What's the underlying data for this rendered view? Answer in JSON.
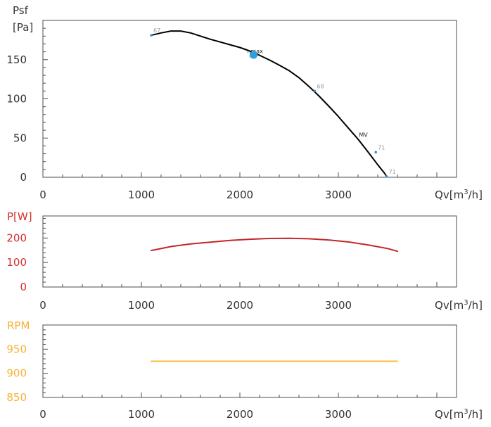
{
  "chart_data": [
    {
      "type": "line",
      "ylabel_line1": "Psf",
      "ylabel_line2": "[Pa]",
      "xlabel": "Qv[m³/h]",
      "xlim": [
        0,
        4200
      ],
      "ylim": [
        0,
        200
      ],
      "xticks": [
        0,
        1000,
        2000,
        3000
      ],
      "yticks": [
        0,
        50,
        100,
        150
      ],
      "label_color": "#333333",
      "series": [
        {
          "color": "#000000",
          "points": [
            [
              1100,
              181
            ],
            [
              1200,
              184
            ],
            [
              1300,
              186.5
            ],
            [
              1400,
              186.5
            ],
            [
              1500,
              184
            ],
            [
              1600,
              180
            ],
            [
              1700,
              176
            ],
            [
              1800,
              172.5
            ],
            [
              1900,
              169
            ],
            [
              2000,
              165.5
            ],
            [
              2100,
              161
            ],
            [
              2200,
              155.5
            ],
            [
              2300,
              149.5
            ],
            [
              2400,
              143
            ],
            [
              2500,
              136
            ],
            [
              2600,
              127
            ],
            [
              2700,
              116
            ],
            [
              2800,
              104
            ],
            [
              2900,
              91
            ],
            [
              3000,
              77.5
            ],
            [
              3100,
              63
            ],
            [
              3200,
              48.5
            ],
            [
              3300,
              32.5
            ],
            [
              3400,
              16
            ],
            [
              3470,
              5
            ],
            [
              3490,
              1
            ]
          ]
        }
      ],
      "markers": [
        {
          "x": 1100,
          "y": 181,
          "label": "67"
        },
        {
          "x": 2760,
          "y": 110,
          "label": "68"
        },
        {
          "x": 3380,
          "y": 32,
          "label": "71"
        },
        {
          "x": 3490,
          "y": 1,
          "label": "71"
        }
      ],
      "annotations": [
        {
          "x": 2140,
          "y": 162,
          "text": "ηmax",
          "subtext": "67"
        },
        {
          "x": 3240,
          "y": 55,
          "text": "MV"
        }
      ],
      "highlight_point": {
        "x": 2140,
        "y": 156,
        "color": "#2b9fe0"
      }
    },
    {
      "type": "line",
      "ylabel": "P[W]",
      "xlabel": "Qv[m³/h]",
      "xlim": [
        0,
        4200
      ],
      "ylim": [
        0,
        290
      ],
      "xticks": [
        0,
        1000,
        2000,
        3000
      ],
      "yticks": [
        0,
        100,
        200
      ],
      "label_color": "#d0312d",
      "series": [
        {
          "color": "#c0282b",
          "points": [
            [
              1100,
              149
            ],
            [
              1300,
              165
            ],
            [
              1500,
              176
            ],
            [
              1700,
              183
            ],
            [
              1900,
              190
            ],
            [
              2100,
              195
            ],
            [
              2300,
              198
            ],
            [
              2500,
              199
            ],
            [
              2700,
              197
            ],
            [
              2900,
              192
            ],
            [
              3100,
              184
            ],
            [
              3300,
              172
            ],
            [
              3500,
              157
            ],
            [
              3600,
              146
            ]
          ]
        }
      ]
    },
    {
      "type": "line",
      "ylabel": "RPM",
      "xlabel": "Qv[m³/h]",
      "xlim": [
        0,
        4200
      ],
      "ylim": [
        850,
        1000
      ],
      "xticks": [
        0,
        1000,
        2000,
        3000
      ],
      "yticks": [
        850,
        900,
        950
      ],
      "label_color": "#f5b335",
      "series": [
        {
          "color": "#f8bb3a",
          "points": [
            [
              1100,
              925
            ],
            [
              3600,
              925
            ]
          ]
        }
      ]
    }
  ]
}
